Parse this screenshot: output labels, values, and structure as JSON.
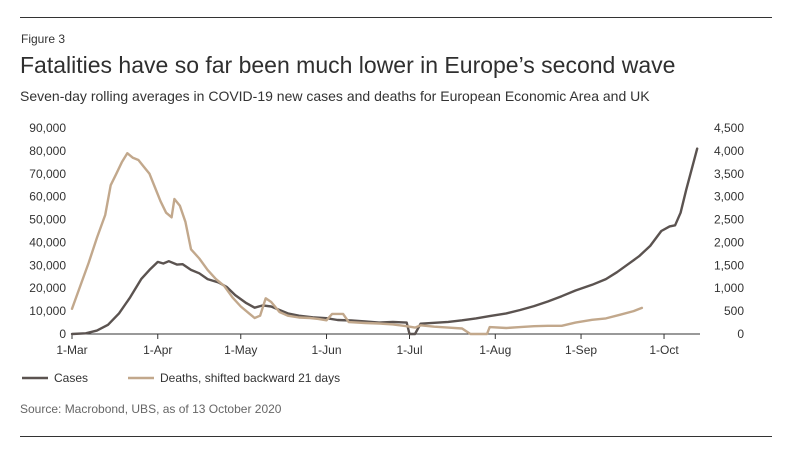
{
  "figure_label": "Figure 3",
  "title": "Fatalities have so far been much lower in Europe’s second wave",
  "subtitle": "Seven-day rolling averages in COVID-19 new cases and deaths for European Economic Area and UK",
  "source": "Source: Macrobond, UBS, as of 13 October 2020",
  "colors": {
    "cases": "#5b5350",
    "deaths": "#c2a88c",
    "axis": "#333333",
    "text": "#333333"
  },
  "chart_data": {
    "type": "line",
    "grid": false,
    "legend_position": "bottom-left",
    "x_range": [
      "2020-03-01",
      "2020-10-14"
    ],
    "x_ticks": [
      {
        "date": "2020-03-01",
        "label": "1-Mar"
      },
      {
        "date": "2020-04-01",
        "label": "1-Apr"
      },
      {
        "date": "2020-05-01",
        "label": "1-May"
      },
      {
        "date": "2020-06-01",
        "label": "1-Jun"
      },
      {
        "date": "2020-07-01",
        "label": "1-Jul"
      },
      {
        "date": "2020-08-01",
        "label": "1-Aug"
      },
      {
        "date": "2020-09-01",
        "label": "1-Sep"
      },
      {
        "date": "2020-10-01",
        "label": "1-Oct"
      }
    ],
    "y_left": {
      "range": [
        0,
        90000
      ],
      "ticks": [
        {
          "value": 0,
          "label": "0"
        },
        {
          "value": 10000,
          "label": "10,000"
        },
        {
          "value": 20000,
          "label": "20,000"
        },
        {
          "value": 30000,
          "label": "30,000"
        },
        {
          "value": 40000,
          "label": "40,000"
        },
        {
          "value": 50000,
          "label": "50,000"
        },
        {
          "value": 60000,
          "label": "60,000"
        },
        {
          "value": 70000,
          "label": "70,000"
        },
        {
          "value": 80000,
          "label": "80,000"
        },
        {
          "value": 90000,
          "label": "90,000"
        }
      ]
    },
    "y_right": {
      "range": [
        0,
        4500
      ],
      "ticks": [
        {
          "value": 0,
          "label": "0"
        },
        {
          "value": 500,
          "label": "500"
        },
        {
          "value": 1000,
          "label": "1,000"
        },
        {
          "value": 1500,
          "label": "1,500"
        },
        {
          "value": 2000,
          "label": "2,000"
        },
        {
          "value": 2500,
          "label": "2,500"
        },
        {
          "value": 3000,
          "label": "3,000"
        },
        {
          "value": 3500,
          "label": "3,500"
        },
        {
          "value": 4000,
          "label": "4,000"
        },
        {
          "value": 4500,
          "label": "4,500"
        }
      ]
    },
    "series": [
      {
        "name": "Cases",
        "axis": "left",
        "points": [
          [
            "2020-03-01",
            0
          ],
          [
            "2020-03-06",
            300
          ],
          [
            "2020-03-10",
            1500
          ],
          [
            "2020-03-14",
            4000
          ],
          [
            "2020-03-18",
            9000
          ],
          [
            "2020-03-22",
            16000
          ],
          [
            "2020-03-26",
            24000
          ],
          [
            "2020-03-29",
            28000
          ],
          [
            "2020-04-01",
            31500
          ],
          [
            "2020-04-03",
            30800
          ],
          [
            "2020-04-05",
            31800
          ],
          [
            "2020-04-08",
            30300
          ],
          [
            "2020-04-10",
            30500
          ],
          [
            "2020-04-13",
            28000
          ],
          [
            "2020-04-16",
            26500
          ],
          [
            "2020-04-19",
            24000
          ],
          [
            "2020-04-23",
            22500
          ],
          [
            "2020-04-26",
            20500
          ],
          [
            "2020-04-29",
            17000
          ],
          [
            "2020-05-03",
            13500
          ],
          [
            "2020-05-06",
            11500
          ],
          [
            "2020-05-09",
            12500
          ],
          [
            "2020-05-12",
            12000
          ],
          [
            "2020-05-15",
            10500
          ],
          [
            "2020-05-18",
            9000
          ],
          [
            "2020-05-22",
            8000
          ],
          [
            "2020-05-27",
            7300
          ],
          [
            "2020-06-01",
            6900
          ],
          [
            "2020-06-05",
            6100
          ],
          [
            "2020-06-10",
            5900
          ],
          [
            "2020-06-15",
            5500
          ],
          [
            "2020-06-20",
            5000
          ],
          [
            "2020-06-25",
            5300
          ],
          [
            "2020-06-30",
            5000
          ],
          [
            "2020-07-01",
            0
          ],
          [
            "2020-07-03",
            0
          ],
          [
            "2020-07-05",
            4500
          ],
          [
            "2020-07-10",
            4900
          ],
          [
            "2020-07-15",
            5300
          ],
          [
            "2020-07-20",
            6000
          ],
          [
            "2020-07-25",
            6800
          ],
          [
            "2020-07-30",
            7800
          ],
          [
            "2020-08-05",
            9000
          ],
          [
            "2020-08-10",
            10500
          ],
          [
            "2020-08-15",
            12200
          ],
          [
            "2020-08-20",
            14200
          ],
          [
            "2020-08-25",
            16500
          ],
          [
            "2020-08-30",
            19000
          ],
          [
            "2020-09-05",
            21500
          ],
          [
            "2020-09-10",
            24000
          ],
          [
            "2020-09-14",
            27000
          ],
          [
            "2020-09-18",
            30500
          ],
          [
            "2020-09-22",
            34000
          ],
          [
            "2020-09-26",
            38500
          ],
          [
            "2020-09-30",
            45000
          ],
          [
            "2020-10-03",
            47000
          ],
          [
            "2020-10-05",
            47500
          ],
          [
            "2020-10-07",
            53000
          ],
          [
            "2020-10-09",
            63000
          ],
          [
            "2020-10-11",
            72000
          ],
          [
            "2020-10-13",
            81000
          ]
        ]
      },
      {
        "name": "Deaths, shifted backward 21 days",
        "axis": "right",
        "points": [
          [
            "2020-03-01",
            550
          ],
          [
            "2020-03-04",
            1050
          ],
          [
            "2020-03-07",
            1550
          ],
          [
            "2020-03-10",
            2100
          ],
          [
            "2020-03-13",
            2600
          ],
          [
            "2020-03-15",
            3250
          ],
          [
            "2020-03-17",
            3500
          ],
          [
            "2020-03-19",
            3750
          ],
          [
            "2020-03-21",
            3950
          ],
          [
            "2020-03-23",
            3850
          ],
          [
            "2020-03-25",
            3800
          ],
          [
            "2020-03-27",
            3650
          ],
          [
            "2020-03-29",
            3500
          ],
          [
            "2020-03-31",
            3200
          ],
          [
            "2020-04-02",
            2900
          ],
          [
            "2020-04-04",
            2650
          ],
          [
            "2020-04-06",
            2550
          ],
          [
            "2020-04-07",
            2950
          ],
          [
            "2020-04-09",
            2800
          ],
          [
            "2020-04-11",
            2450
          ],
          [
            "2020-04-13",
            1850
          ],
          [
            "2020-04-16",
            1650
          ],
          [
            "2020-04-19",
            1400
          ],
          [
            "2020-04-22",
            1200
          ],
          [
            "2020-04-25",
            1050
          ],
          [
            "2020-04-28",
            800
          ],
          [
            "2020-05-01",
            600
          ],
          [
            "2020-05-04",
            450
          ],
          [
            "2020-05-06",
            350
          ],
          [
            "2020-05-08",
            400
          ],
          [
            "2020-05-10",
            780
          ],
          [
            "2020-05-12",
            700
          ],
          [
            "2020-05-15",
            480
          ],
          [
            "2020-05-18",
            400
          ],
          [
            "2020-05-22",
            360
          ],
          [
            "2020-05-26",
            350
          ],
          [
            "2020-05-29",
            330
          ],
          [
            "2020-06-01",
            300
          ],
          [
            "2020-06-03",
            440
          ],
          [
            "2020-06-07",
            440
          ],
          [
            "2020-06-09",
            260
          ],
          [
            "2020-06-15",
            240
          ],
          [
            "2020-06-20",
            230
          ],
          [
            "2020-06-25",
            210
          ],
          [
            "2020-06-30",
            170
          ],
          [
            "2020-07-03",
            140
          ],
          [
            "2020-07-05",
            190
          ],
          [
            "2020-07-10",
            160
          ],
          [
            "2020-07-15",
            140
          ],
          [
            "2020-07-20",
            120
          ],
          [
            "2020-07-23",
            0
          ],
          [
            "2020-07-29",
            0
          ],
          [
            "2020-07-30",
            150
          ],
          [
            "2020-08-05",
            130
          ],
          [
            "2020-08-10",
            150
          ],
          [
            "2020-08-15",
            170
          ],
          [
            "2020-08-20",
            180
          ],
          [
            "2020-08-25",
            180
          ],
          [
            "2020-08-30",
            250
          ],
          [
            "2020-09-05",
            310
          ],
          [
            "2020-09-10",
            340
          ],
          [
            "2020-09-15",
            420
          ],
          [
            "2020-09-20",
            500
          ],
          [
            "2020-09-23",
            570
          ]
        ]
      }
    ]
  }
}
